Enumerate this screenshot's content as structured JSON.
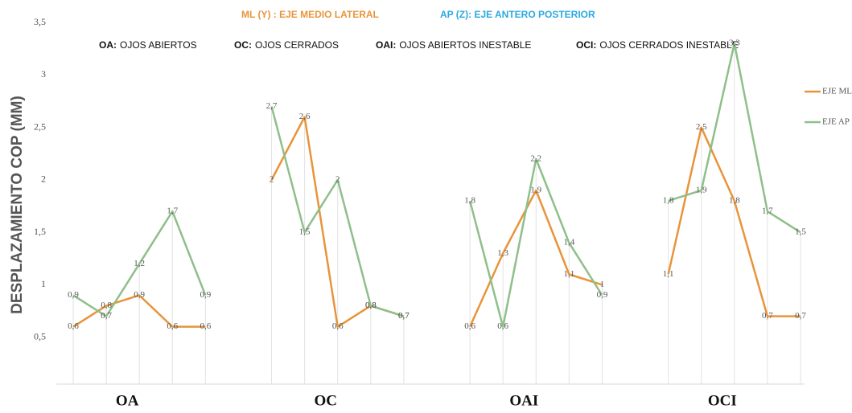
{
  "chart_data": {
    "type": "line",
    "header": [
      {
        "text": "ML (Y) : EJE MEDIO LATERAL",
        "color": "#e8943a"
      },
      {
        "text": "AP (Z): EJE ANTERO POSTERIOR",
        "color": "#29a9e0"
      }
    ],
    "annotations": [
      {
        "key": "OA:",
        "text": "OJOS ABIERTOS"
      },
      {
        "key": "OC:",
        "text": "OJOS CERRADOS"
      },
      {
        "key": "OAI:",
        "text": "OJOS ABIERTOS INESTABLE"
      },
      {
        "key": "OCI:",
        "text": "OJOS CERRADOS INESTABLE"
      }
    ],
    "y_label": "DESPLAZAMIENTO COP (MM)",
    "categories": [
      null,
      null,
      "OA",
      null,
      null,
      null,
      null,
      null,
      "OC",
      null,
      null,
      null,
      null,
      null,
      "OAI",
      null,
      null,
      null,
      null,
      null,
      "OCI",
      null,
      null
    ],
    "series": [
      {
        "name": "EJE ML",
        "color": "#e8943a",
        "values": [
          0.6,
          0.8,
          0.9,
          0.6,
          0.6,
          null,
          2,
          2.6,
          0.6,
          0.8,
          0.7,
          null,
          0.6,
          1.3,
          1.9,
          1.1,
          1,
          null,
          1.1,
          2.5,
          1.8,
          0.7,
          0.7
        ],
        "value_labels": [
          "0,6",
          "0,8",
          "0,9",
          "0,6",
          "0,6",
          null,
          "2",
          "2,6",
          "0,6",
          "0,8",
          "0,7",
          null,
          "0,6",
          "1,3",
          "1,9",
          "1,1",
          "1",
          null,
          "1,1",
          "2,5",
          "1,8",
          "0,7",
          "0,7"
        ]
      },
      {
        "name": "EJE AP",
        "color": "#8fbf8a",
        "values": [
          0.9,
          0.7,
          1.2,
          1.7,
          0.9,
          null,
          2.7,
          1.5,
          2,
          0.8,
          0.7,
          null,
          1.8,
          0.6,
          2.2,
          1.4,
          0.9,
          null,
          1.8,
          1.9,
          3.3,
          1.7,
          1.5
        ],
        "value_labels": [
          "0,9",
          "0,7",
          "1,2",
          "1,7",
          "0,9",
          null,
          "2,7",
          "1,5",
          "2",
          "0,8",
          "0,7",
          null,
          "1,8",
          "0,6",
          "2,2",
          "1,4",
          "0,9",
          null,
          "1,8",
          "1,9",
          "3,3",
          "1,7",
          "1,5"
        ]
      }
    ],
    "ylim": [
      0,
      3.5
    ],
    "yticks": [
      {
        "value": 0.5,
        "label": "0,5"
      },
      1,
      {
        "value": 1.5,
        "label": "1,5"
      },
      2,
      {
        "value": 2.5,
        "label": "2,5"
      },
      3,
      {
        "value": 3.5,
        "label": "3,5"
      }
    ],
    "legend": "right"
  }
}
